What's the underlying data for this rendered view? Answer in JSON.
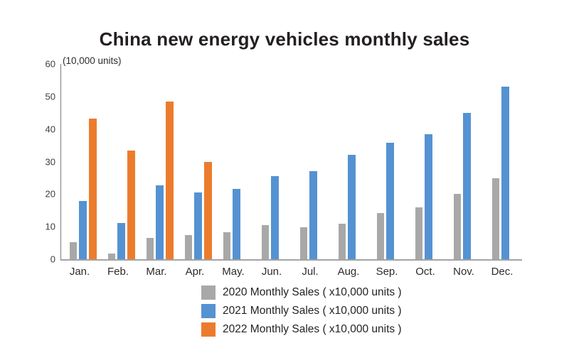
{
  "title": "China new energy vehicles monthly sales",
  "chart_data": {
    "type": "bar",
    "title": "China new energy vehicles monthly sales",
    "unit_label": "(10,000 units)",
    "categories": [
      "Jan.",
      "Feb.",
      "Mar.",
      "Apr.",
      "May.",
      "Jun.",
      "Jul.",
      "Aug.",
      "Sep.",
      "Oct.",
      "Nov.",
      "Dec."
    ],
    "series": [
      {
        "name": "2020 Monthly Sales ( x10,000 units )",
        "color": "#a8a8a8",
        "values": [
          5.3,
          1.8,
          6.6,
          7.5,
          8.2,
          10.4,
          9.8,
          10.9,
          14.1,
          16.0,
          20.0,
          24.8
        ]
      },
      {
        "name": "2021 Monthly Sales ( x10,000 units )",
        "color": "#5592d2",
        "values": [
          18.0,
          11.1,
          22.6,
          20.6,
          21.7,
          25.6,
          27.1,
          32.1,
          35.7,
          38.3,
          45.0,
          53.0
        ]
      },
      {
        "name": "2022 Monthly Sales ( x10,000 units )",
        "color": "#ec7c2d",
        "values": [
          43.1,
          33.4,
          48.4,
          29.9,
          null,
          null,
          null,
          null,
          null,
          null,
          null,
          null
        ]
      }
    ],
    "ylim": [
      0,
      60
    ],
    "yticks": [
      0,
      10,
      20,
      30,
      40,
      50,
      60
    ],
    "xlabel": "",
    "ylabel": "(10,000 units)",
    "grid": false,
    "legend_position": "bottom"
  },
  "layout_colors": {
    "axis_line": "#7d7d7d",
    "baseline": "#a3a3a3",
    "title_text": "#231f20",
    "axis_text": "#3c3c3c"
  }
}
